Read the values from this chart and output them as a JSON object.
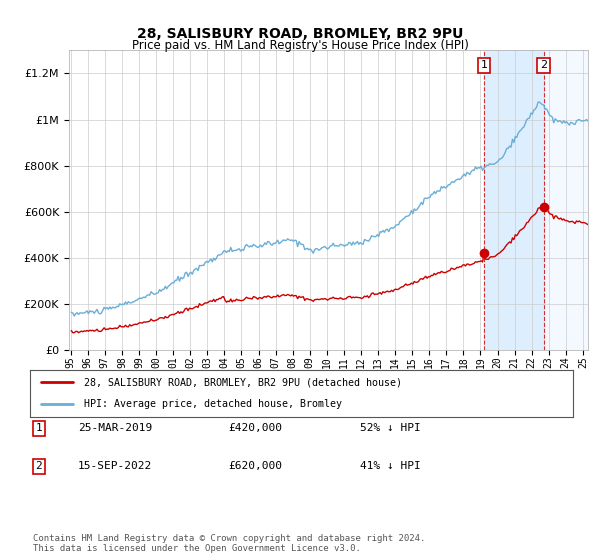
{
  "title1": "28, SALISBURY ROAD, BROMLEY, BR2 9PU",
  "title2": "Price paid vs. HM Land Registry's House Price Index (HPI)",
  "legend_line1": "28, SALISBURY ROAD, BROMLEY, BR2 9PU (detached house)",
  "legend_line2": "HPI: Average price, detached house, Bromley",
  "annotation1": {
    "label": "1",
    "date": "25-MAR-2019",
    "price": "£420,000",
    "pct": "52% ↓ HPI"
  },
  "annotation2": {
    "label": "2",
    "date": "15-SEP-2022",
    "price": "£620,000",
    "pct": "41% ↓ HPI"
  },
  "footnote": "Contains HM Land Registry data © Crown copyright and database right 2024.\nThis data is licensed under the Open Government Licence v3.0.",
  "hpi_color": "#6baed6",
  "price_color": "#cc0000",
  "background_color": "#ffffff",
  "plot_bg_color": "#ffffff",
  "highlight_bg_color": "#ddeeff",
  "grid_color": "#cccccc",
  "ylim": [
    0,
    1300000
  ],
  "year_start": 1995,
  "year_end": 2025,
  "t1_year": 2019.21,
  "t2_year": 2022.71,
  "price1": 420000,
  "price2": 620000
}
